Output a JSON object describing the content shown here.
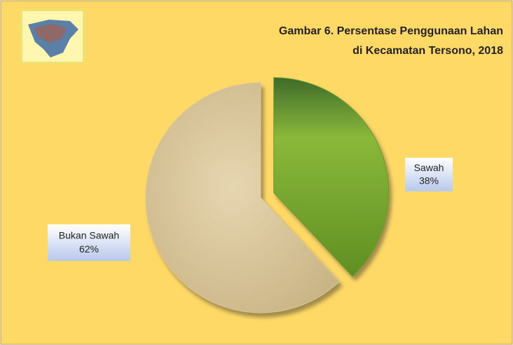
{
  "chart_data": {
    "type": "pie",
    "title": [
      "Gambar 6. Persentase Penggunaan Lahan",
      "di Kecamatan Tersono, 2018"
    ],
    "categories": [
      "Sawah",
      "Bukan Sawah"
    ],
    "values": [
      38,
      62
    ],
    "value_labels": [
      "38%",
      "62%"
    ],
    "colors": [
      "#6a9e2c",
      "#d8c49a"
    ],
    "exploded": [
      true,
      false
    ]
  }
}
